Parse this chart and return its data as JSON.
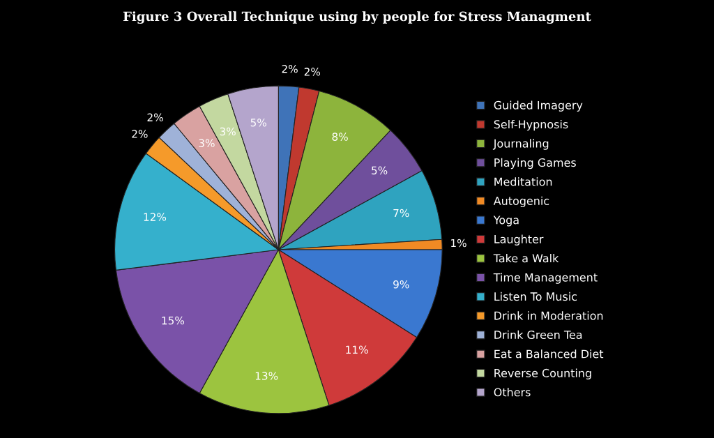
{
  "chart_data": {
    "type": "pie",
    "title": "Figure 3 Overall Technique using by people for Stress Managment",
    "categories": [
      "Guided Imagery",
      "Self-Hypnosis",
      "Journaling",
      "Playing Games",
      "Meditation",
      "Autogenic",
      "Yoga",
      "Laughter",
      "Take a Walk",
      "Time Management",
      "Listen To Music",
      "Drink in Moderation",
      "Drink Green Tea",
      "Eat a Balanced Diet",
      "Reverse Counting",
      "Others"
    ],
    "values": [
      2,
      2,
      8,
      5,
      7,
      1,
      9,
      11,
      13,
      15,
      12,
      2,
      2,
      3,
      3,
      5
    ],
    "value_labels": [
      "2%",
      "2%",
      "8%",
      "5%",
      "7%",
      "1%",
      "9%",
      "11%",
      "13%",
      "15%",
      "12%",
      "2%",
      "2%",
      "3%",
      "3%",
      "5%"
    ],
    "colors": [
      "#3f73b8",
      "#c0392f",
      "#8db43c",
      "#6f4f9c",
      "#2fa3bf",
      "#f08a24",
      "#3a78d0",
      "#cf3a3a",
      "#9cc43f",
      "#7a52a8",
      "#35b0cc",
      "#f59a2a",
      "#9fb2d8",
      "#d9a2a1",
      "#c3d8a0",
      "#b4a5cc"
    ],
    "legend": "right"
  }
}
